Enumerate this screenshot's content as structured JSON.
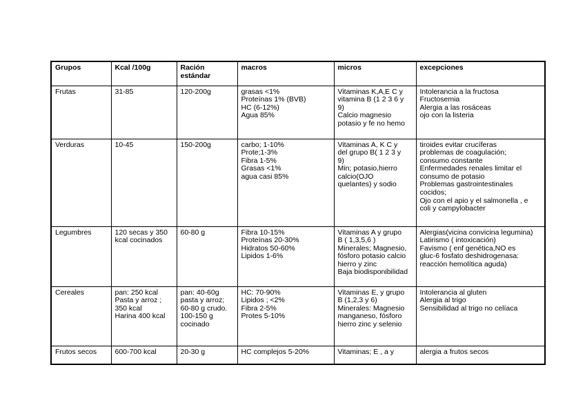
{
  "page": {
    "background_color": "#ffffff",
    "text_color": "#000000",
    "border_color": "#000000"
  },
  "table": {
    "headers": {
      "grupos": "Grupos",
      "kcal": "Kcal /100g",
      "racion": "Ración estándar",
      "macros": "macros",
      "micros": "micros",
      "excepciones": "excepciones"
    },
    "rows": [
      {
        "grupo": "Frutas",
        "kcal": "31-85",
        "racion": "120-200g",
        "macros": "grasas <1%\nProteínas 1% (BVB)\nHC (6-12%)\nAgua 85%",
        "micros": "Vitaminas K,A,E  C y\nvitamina B (1 2 3 6 y\n9)\nCalcio magnesio\npotasio y fe no hemo",
        "excepciones": "Intolerancia a la fructosa\nFructosemia\nAlergia a las rosáceas\nojo con la listeria"
      },
      {
        "grupo": "Verduras",
        "kcal": "10-45",
        "racion": "150-200g",
        "macros": "carbo; 1-10%\nProte;1-3%\nFibra 1-5%\nGrasas <1%\nagua casi 85%",
        "micros": "Vitaminas A, K C y\ndel grupo B( 1  2 3 y\n9)\nMin; potasio,hierro\ncalcio(OJO\nquelantes) y sodio",
        "excepciones": "tiroides evitar crucíferas\nproblemas de coagulación;\nconsumo constante\nEnfermedades renales limitar el\nconsumo de potasio\nProblemas gastrointestinales\ncocidos;\nOjo con el apio y el salmonella , e\ncoli y campylobacter"
      },
      {
        "grupo": "Legumbres",
        "kcal": "120 secas y 350\nkcal cocinados",
        "racion": "60-80 g",
        "macros": "Fibra 10-15%\nProteínas 20-30%\nHidratos 50-60%\nLipidos 1-6%",
        "micros": "Vitaminas A y grupo\nB ( 1,3,5,6 )\nMinerales; Magnesio,\nfósforo potasio calcio\nhierro y zinc\nBaja biodisponibilidad",
        "excepciones": "Alergias(vicina convicina legumina)\nLatirismo ( intoxicación)\nFavismo ( enf genética,NO es\ngluc-6 fosfato deshidrogenasa:\nreacción hemolítica aguda)"
      },
      {
        "grupo": "Cereales",
        "kcal": "pan: 250 kcal\nPasta y arroz ;\n350 kcal\nHarina 400 kcal",
        "racion": "pan: 40-60g\npasta y arroz;\n60-80 g crudo.\n100-150 g\ncocinado",
        "macros": "HC: 70-90%\nLipidos ; <2%\nFibra 2-5%\nProtes 5-10%",
        "micros": "Vitaminas E, y grupo\nB (1,2,3 y 6)\nMinerales: Magnesio\nmanganeso, fósforo\nhierro zinc y selenio",
        "excepciones": "Intolerancia al gluten\nAlergia al trigo\nSensibilidad al trigo no celíaca"
      },
      {
        "grupo": "Frutos secos",
        "kcal": "600-700 kcal",
        "racion": "20-30 g",
        "macros": "HC complejos 5-20%",
        "micros": "Vitaminas; E , a y",
        "excepciones": "alergia a frutos secos"
      }
    ]
  }
}
